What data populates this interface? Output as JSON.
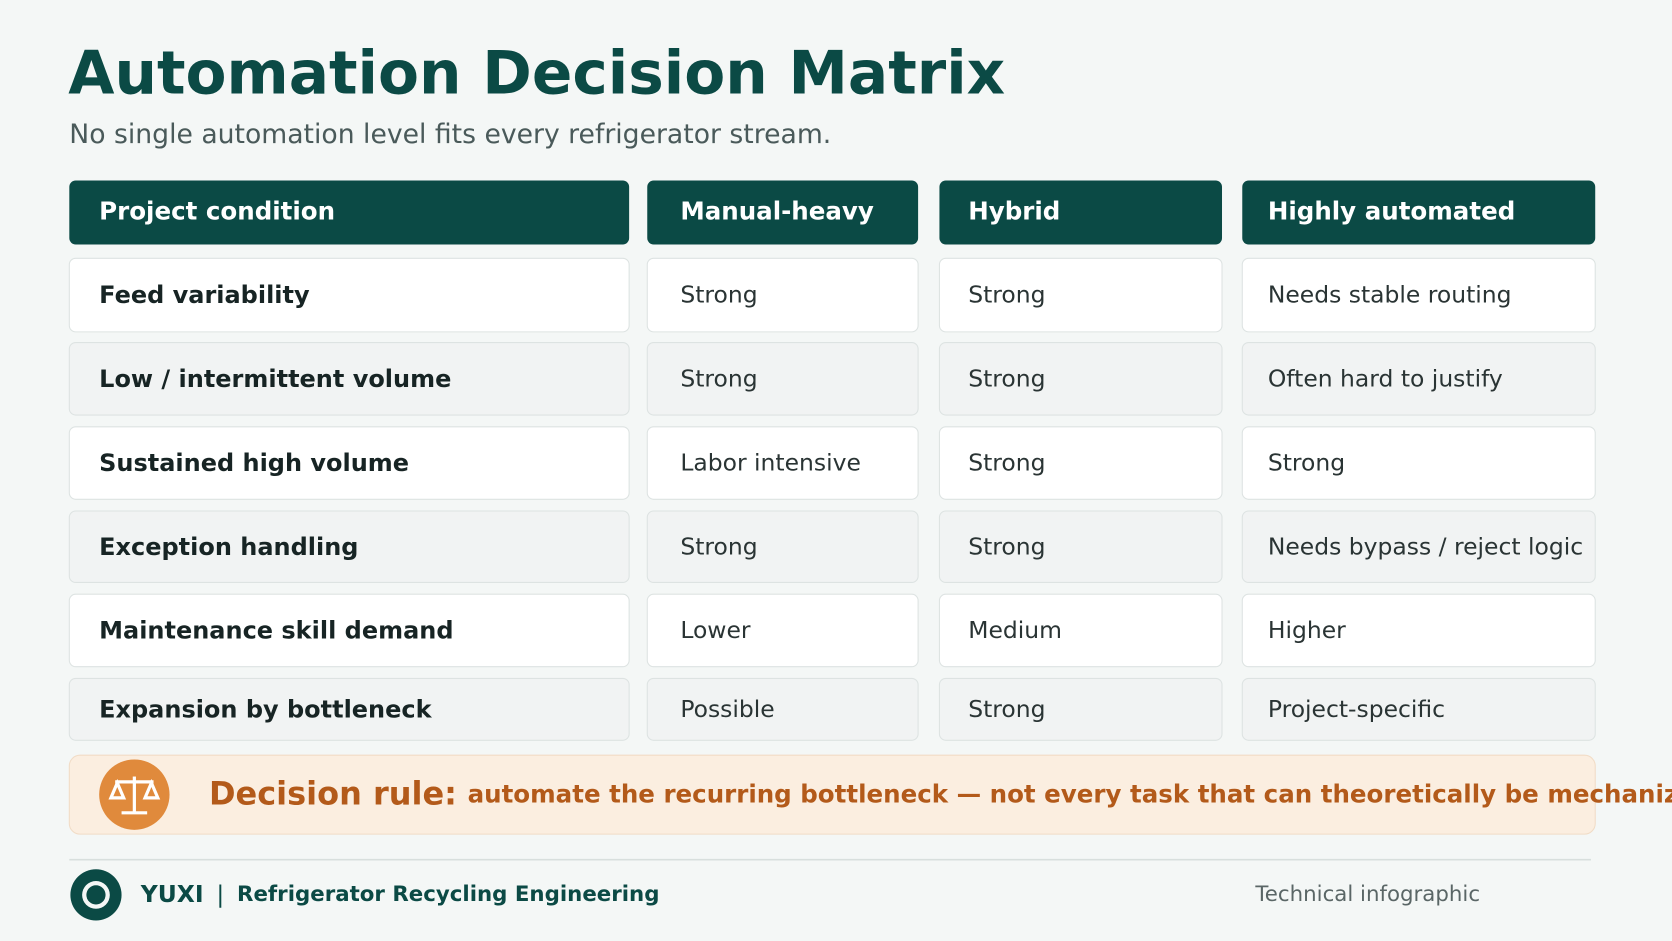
{
  "header": {
    "title": "Automation Decision Matrix",
    "subtitle": "No single automation level fits every refrigerator stream."
  },
  "table": {
    "columns": [
      "Project condition",
      "Manual-heavy",
      "Hybrid",
      "Highly automated"
    ],
    "rows": [
      [
        "Feed variability",
        "Strong",
        "Strong",
        "Needs stable routing"
      ],
      [
        "Low / intermittent volume",
        "Strong",
        "Strong",
        "Often hard to justify"
      ],
      [
        "Sustained high volume",
        "Labor intensive",
        "Strong",
        "Strong"
      ],
      [
        "Exception handling",
        "Strong",
        "Strong",
        "Needs bypass / reject logic"
      ],
      [
        "Maintenance skill demand",
        "Lower",
        "Medium",
        "Higher"
      ],
      [
        "Expansion by bottleneck",
        "Possible",
        "Strong",
        "Project-specific"
      ]
    ]
  },
  "decision": {
    "label": "Decision rule:",
    "text": "automate the recurring bottleneck — not every task that can theoretically be mechanized."
  },
  "footer": {
    "brand": "YUXI",
    "separator": "|",
    "tagline": "Refrigerator Recycling Engineering",
    "note": "Technical infographic"
  }
}
